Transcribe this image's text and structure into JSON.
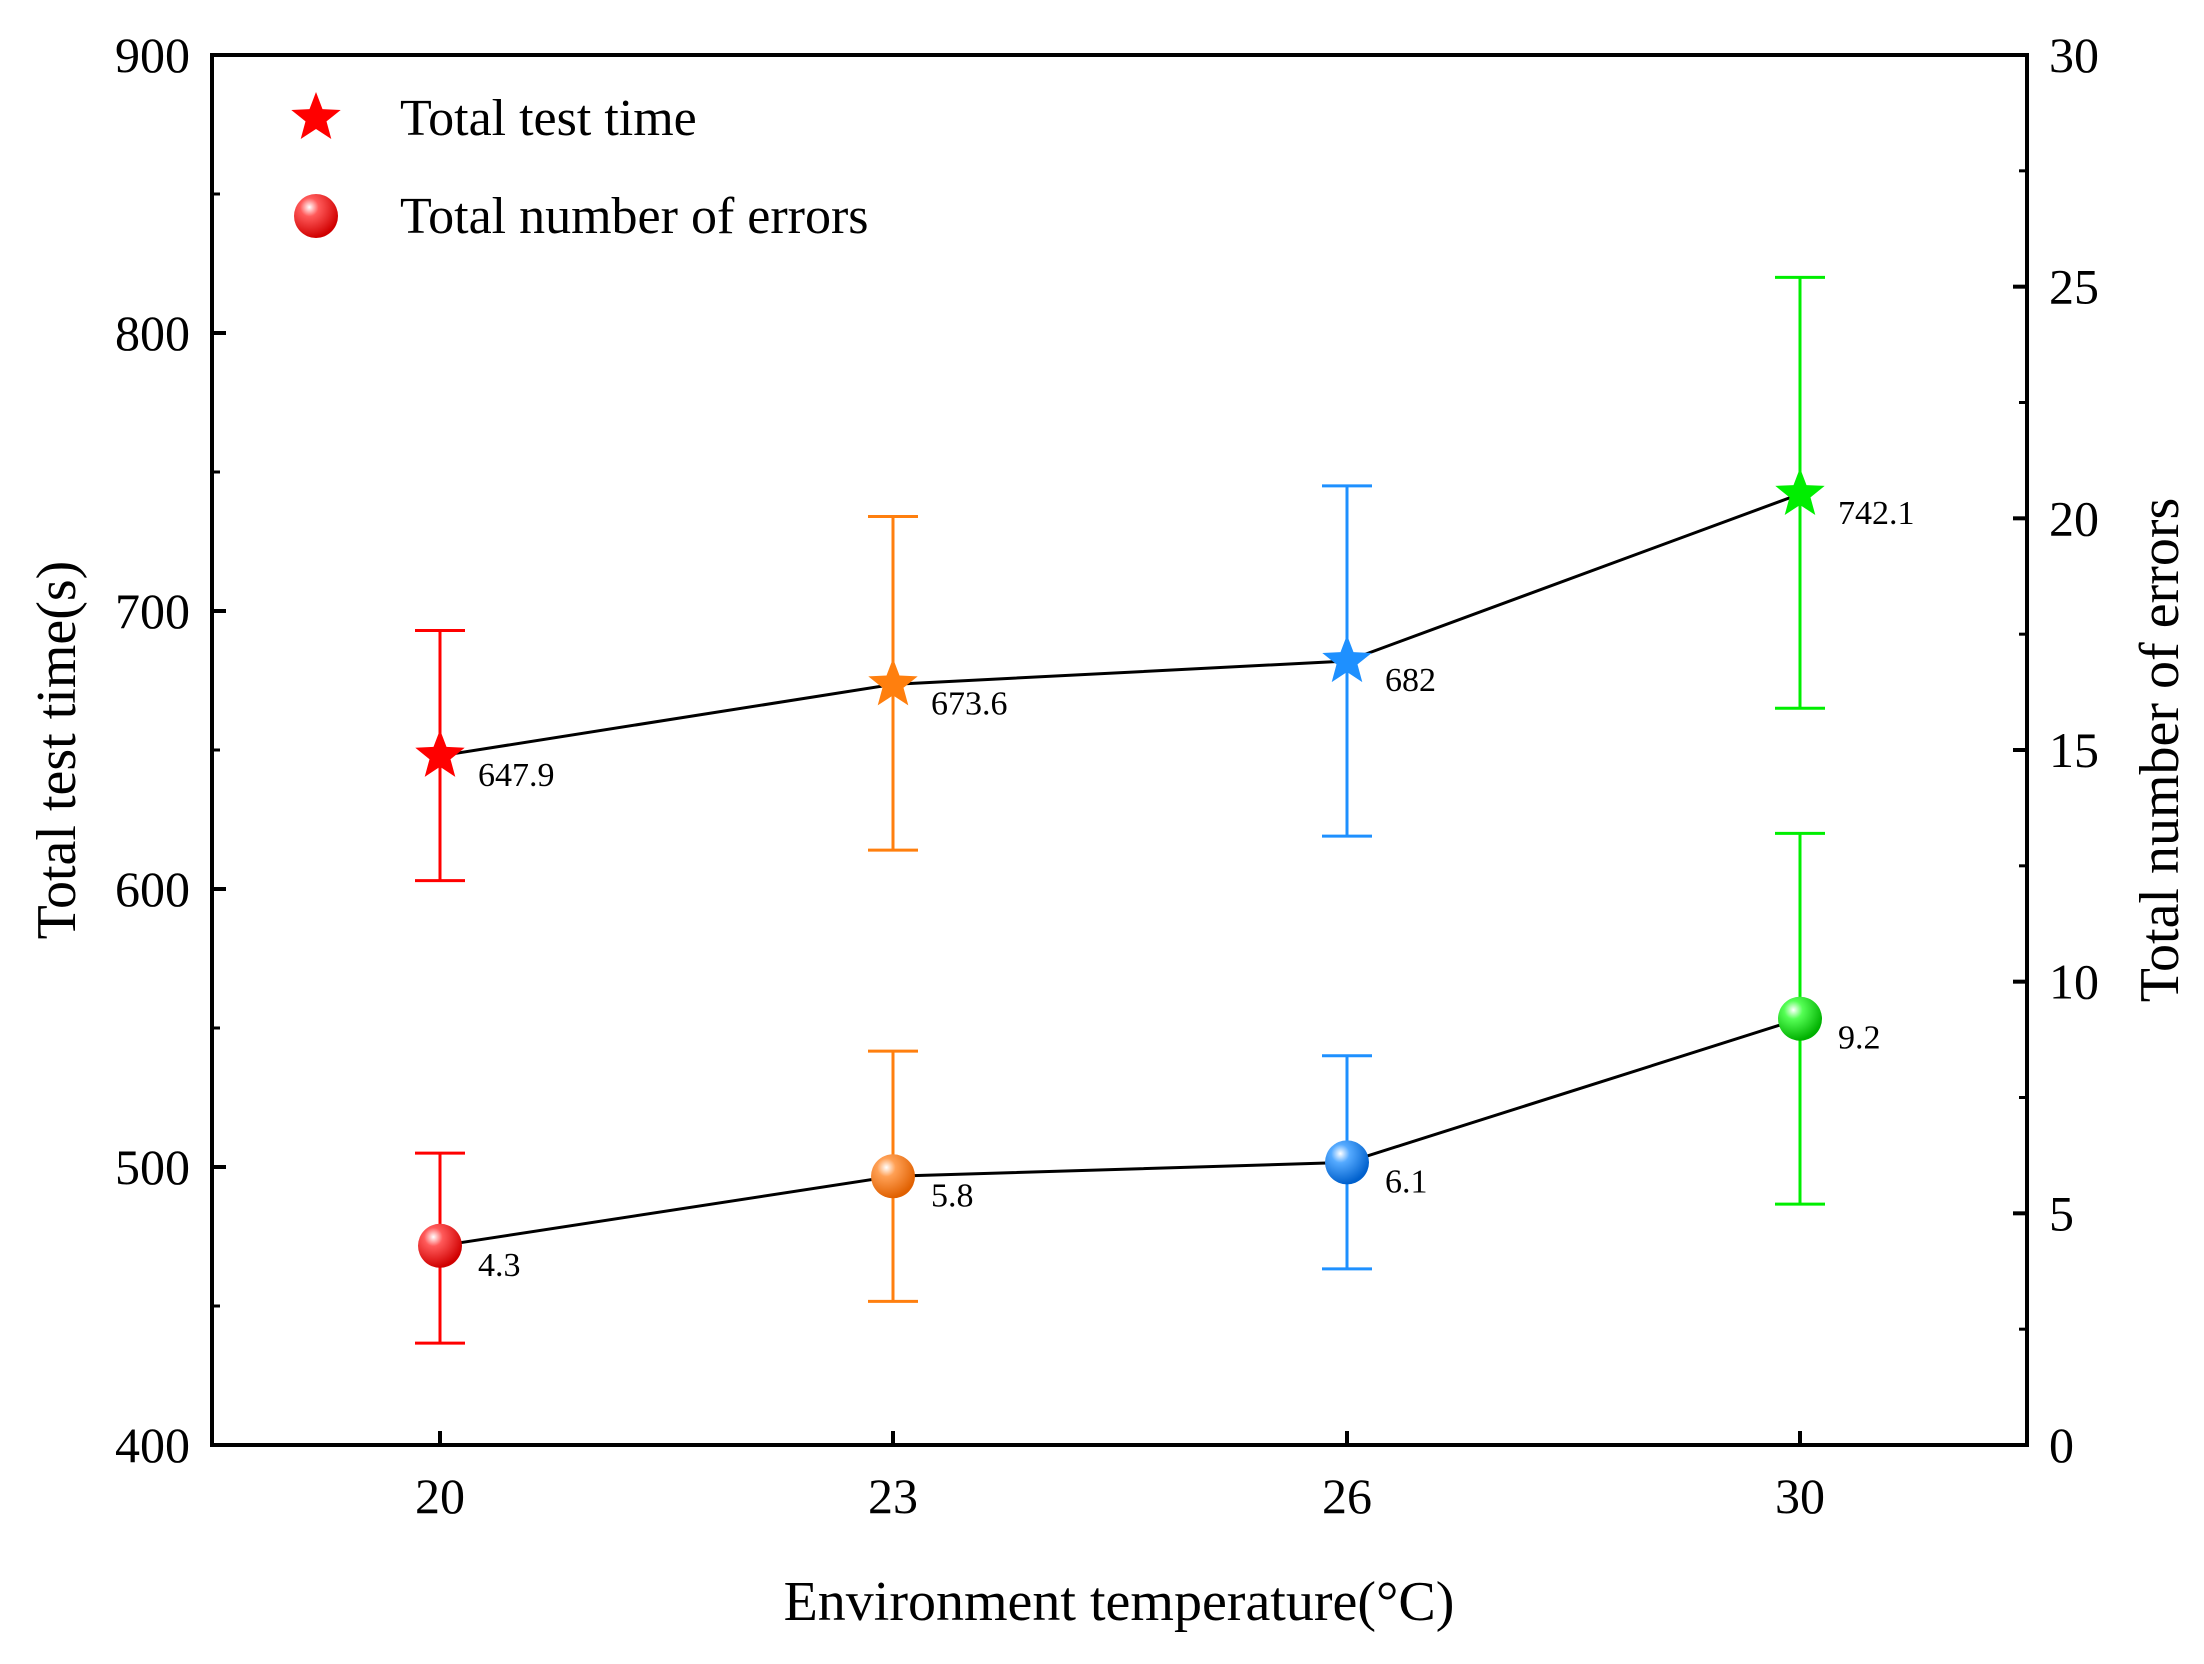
{
  "chart_data": {
    "type": "scatter",
    "x_categories": [
      "20",
      "23",
      "26",
      "30"
    ],
    "xlabel": "Environment temperature(°C)",
    "ylabel_left": "Total test time(s)",
    "ylabel_right": "Total number of errors",
    "ylim_left": [
      400,
      900
    ],
    "ylim_right": [
      0,
      30
    ],
    "yticks_left": [
      "400",
      "500",
      "600",
      "700",
      "800",
      "900"
    ],
    "yticks_right": [
      "0",
      "5",
      "10",
      "15",
      "20",
      "25",
      "30"
    ],
    "grid": false,
    "legend_position": "top-left",
    "category_colors": [
      "#ff0000",
      "#ff7f0e",
      "#1e90ff",
      "#00ee00"
    ],
    "connector_color": "#000000",
    "series": [
      {
        "name": "Total test time",
        "marker": "star",
        "axis": "left",
        "values": [
          647.9,
          673.6,
          682,
          742.1
        ],
        "labels": [
          "647.9",
          "673.6",
          "682",
          "742.1"
        ],
        "err_low": [
          603,
          614,
          619,
          665
        ],
        "err_high": [
          693,
          734,
          745,
          820
        ]
      },
      {
        "name": "Total number of errors",
        "marker": "sphere",
        "axis": "right",
        "values": [
          4.3,
          5.8,
          6.1,
          9.2
        ],
        "labels": [
          "4.3",
          "5.8",
          "6.1",
          "9.2"
        ],
        "err_low": [
          2.2,
          3.1,
          3.8,
          5.2
        ],
        "err_high": [
          6.3,
          8.5,
          8.4,
          13.2
        ]
      }
    ]
  }
}
